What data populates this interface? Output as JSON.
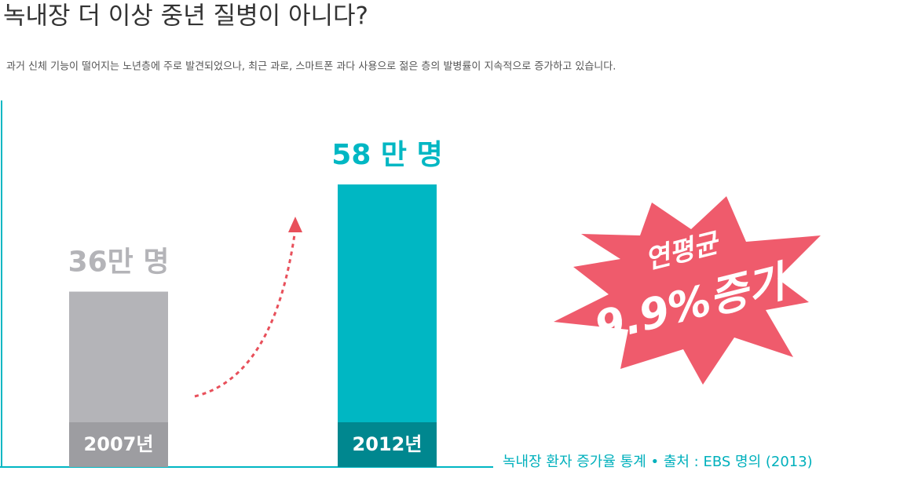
{
  "chart_data": {
    "type": "bar",
    "title": "녹내장 더 이상 중년 질병이 아니다?",
    "subtitle": "과거 신체 기능이 떨어지는 노년층에 주로 발견되었으나, 최근 과로, 스마트폰 과다 사용으로 젊은 층의 발병률이 지속적으로 증가하고 있습니다.",
    "categories": [
      "2007년",
      "2012년"
    ],
    "values": [
      36,
      58
    ],
    "value_labels": [
      "36만 명",
      "58 만 명"
    ],
    "colors": [
      "#b4b4b8",
      "#00b7c3"
    ],
    "label_colors": [
      "#9d9da1",
      "#00878f"
    ],
    "annotations": [
      "연평균",
      "9.9%증가"
    ],
    "source": "녹내장 환자 증가율 통계 • 출처 : EBS 명의 (2013)"
  }
}
